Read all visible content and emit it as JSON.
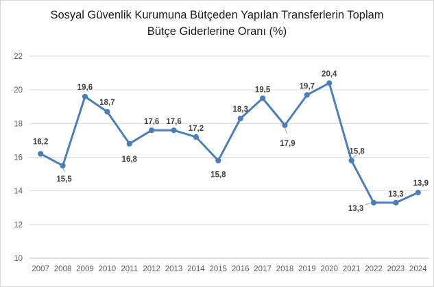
{
  "chart_data": {
    "type": "line",
    "title_line1": "Sosyal Güvenlik Kurumuna Bütçeden Yapılan Transferlerin Toplam",
    "title_line2": "Bütçe Giderlerine Oranı (%)",
    "xlabel": "",
    "ylabel": "",
    "ylim": [
      10,
      22
    ],
    "yticks": [
      "10",
      "12",
      "14",
      "16",
      "18",
      "20",
      "22"
    ],
    "grid": true,
    "categories": [
      "2007",
      "2008",
      "2009",
      "2010",
      "2011",
      "2012",
      "2013",
      "2014",
      "2015",
      "2016",
      "2017",
      "2018",
      "2019",
      "2020",
      "2021",
      "2022",
      "2023",
      "2024"
    ],
    "series": [
      {
        "values": [
          16.2,
          15.5,
          19.6,
          18.7,
          16.8,
          17.6,
          17.6,
          17.2,
          15.8,
          18.3,
          19.5,
          17.9,
          19.7,
          20.4,
          15.8,
          13.3,
          13.3,
          13.9
        ],
        "labels": [
          "16,2",
          "15,5",
          "19,6",
          "18,7",
          "16,8",
          "17,6",
          "17,6",
          "17,2",
          "15,8",
          "18,3",
          "19,5",
          "17,9",
          "19,7",
          "20,4",
          "15,8",
          "13,3",
          "13,3",
          "13,9"
        ],
        "color": "#4a7ebb"
      }
    ],
    "colors": {
      "line": "#4a7ebb",
      "grid": "#d9d9d9",
      "axis": "#bfbfbf"
    }
  }
}
